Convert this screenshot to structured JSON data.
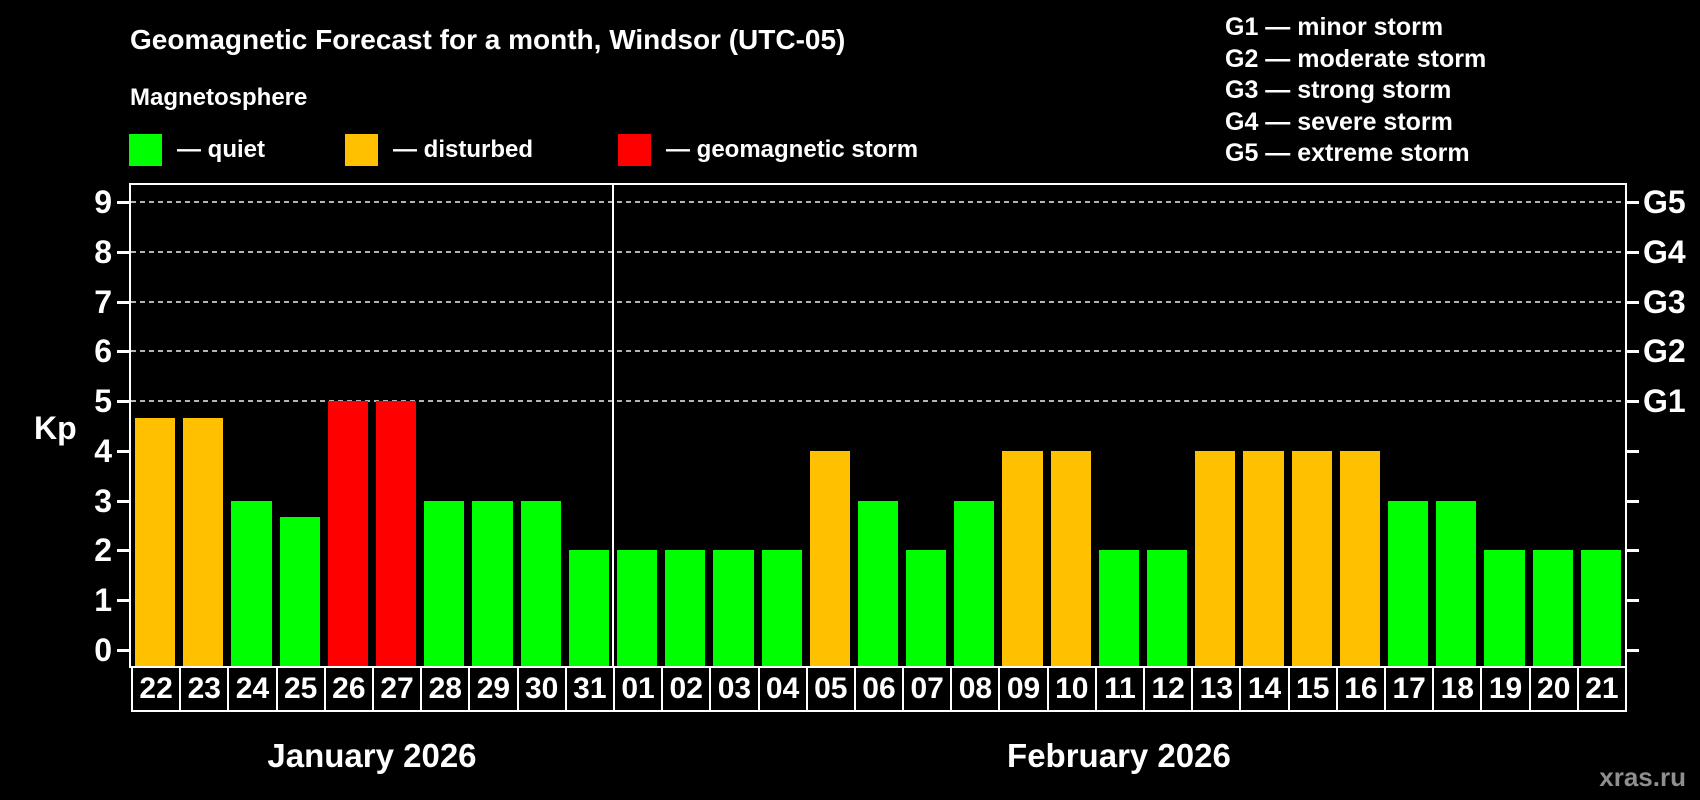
{
  "header": {
    "title": "Geomagnetic Forecast for a month, Windsor (UTC-05)",
    "subtitle": "Magnetosphere"
  },
  "bar_legend": [
    {
      "name": "quiet",
      "label": "— quiet",
      "color": "#00ff00"
    },
    {
      "name": "disturbed",
      "label": "— disturbed",
      "color": "#ffc000"
    },
    {
      "name": "storm",
      "label": "— geomagnetic storm",
      "color": "#ff0000"
    }
  ],
  "storm_scale_legend": [
    "G1 — minor storm",
    "G2 — moderate storm",
    "G3 — strong storm",
    "G4 — severe storm",
    "G5 — extreme storm"
  ],
  "watermark": "xras.ru",
  "chart_data": {
    "type": "bar",
    "title": "Geomagnetic Forecast for a month, Windsor (UTC-05)",
    "ylabel": "Kp",
    "ylim": [
      0,
      9
    ],
    "y_ticks": [
      0,
      1,
      2,
      3,
      4,
      5,
      6,
      7,
      8,
      9
    ],
    "grid": {
      "dashed_horizontal_at_kp": [
        5,
        6,
        7,
        8,
        9
      ]
    },
    "right_axis_labels": [
      {
        "kp": 5,
        "label": "G1"
      },
      {
        "kp": 6,
        "label": "G2"
      },
      {
        "kp": 7,
        "label": "G3"
      },
      {
        "kp": 8,
        "label": "G4"
      },
      {
        "kp": 9,
        "label": "G5"
      }
    ],
    "months": [
      {
        "label": "January 2026",
        "categories": [
          "22",
          "23",
          "24",
          "25",
          "26",
          "27",
          "28",
          "29",
          "30",
          "31"
        ]
      },
      {
        "label": "February 2026",
        "categories": [
          "01",
          "02",
          "03",
          "04",
          "05",
          "06",
          "07",
          "08",
          "09",
          "10",
          "11",
          "12",
          "13",
          "14",
          "15",
          "16",
          "17",
          "18",
          "19",
          "20",
          "21"
        ]
      }
    ],
    "series": [
      {
        "name": "Kp forecast",
        "points": [
          {
            "day": "22",
            "kp": 4.67,
            "state": "disturbed"
          },
          {
            "day": "23",
            "kp": 4.67,
            "state": "disturbed"
          },
          {
            "day": "24",
            "kp": 3,
            "state": "quiet"
          },
          {
            "day": "25",
            "kp": 2.67,
            "state": "quiet"
          },
          {
            "day": "26",
            "kp": 5,
            "state": "storm"
          },
          {
            "day": "27",
            "kp": 5,
            "state": "storm"
          },
          {
            "day": "28",
            "kp": 3,
            "state": "quiet"
          },
          {
            "day": "29",
            "kp": 3,
            "state": "quiet"
          },
          {
            "day": "30",
            "kp": 3,
            "state": "quiet"
          },
          {
            "day": "31",
            "kp": 2,
            "state": "quiet"
          },
          {
            "day": "01",
            "kp": 2,
            "state": "quiet"
          },
          {
            "day": "02",
            "kp": 2,
            "state": "quiet"
          },
          {
            "day": "03",
            "kp": 2,
            "state": "quiet"
          },
          {
            "day": "04",
            "kp": 2,
            "state": "quiet"
          },
          {
            "day": "05",
            "kp": 4,
            "state": "disturbed"
          },
          {
            "day": "06",
            "kp": 3,
            "state": "quiet"
          },
          {
            "day": "07",
            "kp": 2,
            "state": "quiet"
          },
          {
            "day": "08",
            "kp": 3,
            "state": "quiet"
          },
          {
            "day": "09",
            "kp": 4,
            "state": "disturbed"
          },
          {
            "day": "10",
            "kp": 4,
            "state": "disturbed"
          },
          {
            "day": "11",
            "kp": 2,
            "state": "quiet"
          },
          {
            "day": "12",
            "kp": 2,
            "state": "quiet"
          },
          {
            "day": "13",
            "kp": 4,
            "state": "disturbed"
          },
          {
            "day": "14",
            "kp": 4,
            "state": "disturbed"
          },
          {
            "day": "15",
            "kp": 4,
            "state": "disturbed"
          },
          {
            "day": "16",
            "kp": 4,
            "state": "disturbed"
          },
          {
            "day": "17",
            "kp": 3,
            "state": "quiet"
          },
          {
            "day": "18",
            "kp": 3,
            "state": "quiet"
          },
          {
            "day": "19",
            "kp": 2,
            "state": "quiet"
          },
          {
            "day": "20",
            "kp": 2,
            "state": "quiet"
          },
          {
            "day": "21",
            "kp": 2,
            "state": "quiet"
          }
        ]
      }
    ],
    "state_colors": {
      "quiet": "#00ff00",
      "disturbed": "#ffc000",
      "storm": "#ff0000"
    }
  }
}
